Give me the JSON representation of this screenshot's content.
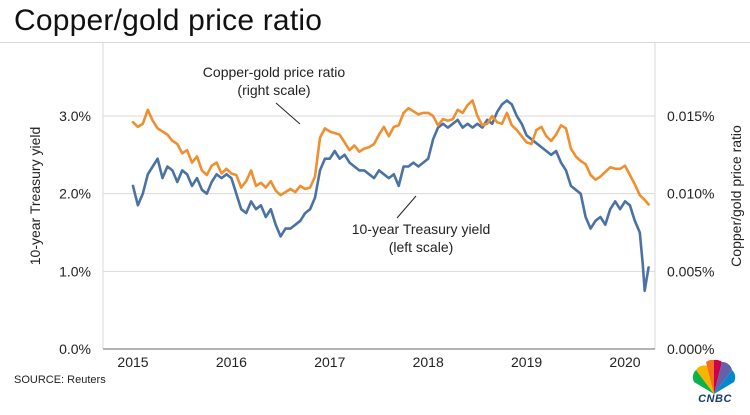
{
  "header": {
    "title": "Copper/gold price ratio"
  },
  "footer": {
    "source": "SOURCE: Reuters",
    "logo_text": "CNBC"
  },
  "colors": {
    "yield": "#4a72a4",
    "ratio": "#ef8f2f",
    "grid": "#d9d9d9"
  },
  "chart_data": {
    "type": "line",
    "title": "Copper/gold price ratio",
    "xlabel": "",
    "ylabel_left": "10-year Treasury yield",
    "ylabel_right": "Copper/gold price ratio",
    "x_ticks": [
      "2015",
      "2016",
      "2017",
      "2018",
      "2019",
      "2020"
    ],
    "y_left_ticks": [
      "0.0%",
      "1.0%",
      "2.0%",
      "3.0%"
    ],
    "y_right_ticks": [
      "0.000%",
      "0.005%",
      "0.010%",
      "0.015%"
    ],
    "xlim": [
      2015,
      2020.4
    ],
    "ylim_left": [
      0,
      3.3
    ],
    "ylim_right": [
      0,
      0.0165
    ],
    "grid": true,
    "annotations": {
      "ratio": [
        "Copper-gold price ratio",
        "(right scale)"
      ],
      "yield": [
        "10-year Treasury yield",
        "(left scale)"
      ]
    },
    "series": [
      {
        "name": "10-year Treasury yield",
        "axis": "left",
        "x": [
          2015.0,
          2015.05,
          2015.1,
          2015.15,
          2015.2,
          2015.25,
          2015.3,
          2015.35,
          2015.4,
          2015.45,
          2015.5,
          2015.55,
          2015.6,
          2015.65,
          2015.7,
          2015.75,
          2015.8,
          2015.85,
          2015.9,
          2015.95,
          2016.0,
          2016.05,
          2016.1,
          2016.15,
          2016.2,
          2016.25,
          2016.3,
          2016.35,
          2016.4,
          2016.45,
          2016.5,
          2016.55,
          2016.6,
          2016.65,
          2016.7,
          2016.75,
          2016.8,
          2016.85,
          2016.9,
          2016.95,
          2017.0,
          2017.05,
          2017.1,
          2017.15,
          2017.2,
          2017.25,
          2017.3,
          2017.35,
          2017.4,
          2017.45,
          2017.5,
          2017.55,
          2017.6,
          2017.65,
          2017.7,
          2017.75,
          2017.8,
          2017.85,
          2017.9,
          2017.95,
          2018.0,
          2018.05,
          2018.1,
          2018.15,
          2018.2,
          2018.25,
          2018.3,
          2018.35,
          2018.4,
          2018.45,
          2018.5,
          2018.55,
          2018.6,
          2018.65,
          2018.7,
          2018.75,
          2018.8,
          2018.85,
          2018.9,
          2018.95,
          2019.0,
          2019.05,
          2019.1,
          2019.15,
          2019.2,
          2019.25,
          2019.3,
          2019.35,
          2019.4,
          2019.45,
          2019.5,
          2019.55,
          2019.6,
          2019.65,
          2019.7,
          2019.75,
          2019.8,
          2019.85,
          2019.9,
          2019.95,
          2020.0,
          2020.05,
          2020.1,
          2020.15,
          2020.18,
          2020.2,
          2020.22,
          2020.24
        ],
        "values": [
          2.1,
          1.85,
          2.0,
          2.25,
          2.35,
          2.45,
          2.2,
          2.35,
          2.3,
          2.15,
          2.3,
          2.25,
          2.1,
          2.2,
          2.05,
          2.0,
          2.15,
          2.25,
          2.2,
          2.25,
          2.2,
          2.0,
          1.8,
          1.75,
          1.9,
          1.8,
          1.85,
          1.7,
          1.8,
          1.6,
          1.45,
          1.55,
          1.55,
          1.6,
          1.65,
          1.75,
          1.8,
          1.95,
          2.3,
          2.45,
          2.45,
          2.55,
          2.45,
          2.5,
          2.4,
          2.35,
          2.3,
          2.3,
          2.25,
          2.2,
          2.3,
          2.25,
          2.2,
          2.25,
          2.1,
          2.35,
          2.35,
          2.4,
          2.35,
          2.4,
          2.45,
          2.7,
          2.85,
          2.9,
          2.85,
          2.9,
          2.95,
          2.85,
          2.9,
          2.85,
          2.9,
          2.85,
          2.95,
          2.9,
          3.05,
          3.15,
          3.2,
          3.15,
          3.0,
          2.9,
          2.75,
          2.7,
          2.65,
          2.6,
          2.55,
          2.5,
          2.55,
          2.4,
          2.3,
          2.1,
          2.05,
          2.0,
          1.7,
          1.55,
          1.65,
          1.7,
          1.6,
          1.8,
          1.9,
          1.8,
          1.9,
          1.85,
          1.65,
          1.5,
          1.1,
          0.75,
          0.9,
          1.05
        ]
      },
      {
        "name": "Copper-gold price ratio",
        "axis": "right",
        "x": [
          2015.0,
          2015.05,
          2015.1,
          2015.15,
          2015.2,
          2015.25,
          2015.3,
          2015.35,
          2015.4,
          2015.45,
          2015.5,
          2015.55,
          2015.6,
          2015.65,
          2015.7,
          2015.75,
          2015.8,
          2015.85,
          2015.9,
          2015.95,
          2016.0,
          2016.05,
          2016.1,
          2016.15,
          2016.2,
          2016.25,
          2016.3,
          2016.35,
          2016.4,
          2016.45,
          2016.5,
          2016.55,
          2016.6,
          2016.65,
          2016.7,
          2016.75,
          2016.8,
          2016.85,
          2016.9,
          2016.95,
          2017.0,
          2017.05,
          2017.1,
          2017.15,
          2017.2,
          2017.25,
          2017.3,
          2017.35,
          2017.4,
          2017.45,
          2017.5,
          2017.55,
          2017.6,
          2017.65,
          2017.7,
          2017.75,
          2017.8,
          2017.85,
          2017.9,
          2017.95,
          2018.0,
          2018.05,
          2018.1,
          2018.15,
          2018.2,
          2018.25,
          2018.3,
          2018.35,
          2018.4,
          2018.45,
          2018.5,
          2018.55,
          2018.6,
          2018.65,
          2018.7,
          2018.75,
          2018.8,
          2018.85,
          2018.9,
          2018.95,
          2019.0,
          2019.05,
          2019.1,
          2019.15,
          2019.2,
          2019.25,
          2019.3,
          2019.35,
          2019.4,
          2019.45,
          2019.5,
          2019.55,
          2019.6,
          2019.65,
          2019.7,
          2019.75,
          2019.8,
          2019.85,
          2019.9,
          2019.95,
          2020.0,
          2020.05,
          2020.1,
          2020.15,
          2020.2,
          2020.24
        ],
        "values": [
          0.0146,
          0.0143,
          0.0145,
          0.0154,
          0.0147,
          0.0142,
          0.014,
          0.0138,
          0.0134,
          0.0132,
          0.0126,
          0.0128,
          0.012,
          0.0124,
          0.0115,
          0.0112,
          0.0118,
          0.012,
          0.0113,
          0.0116,
          0.0113,
          0.0112,
          0.0104,
          0.0108,
          0.0115,
          0.0105,
          0.0107,
          0.0104,
          0.0108,
          0.0102,
          0.0099,
          0.0101,
          0.0103,
          0.0101,
          0.0105,
          0.0103,
          0.0104,
          0.0111,
          0.0136,
          0.0142,
          0.014,
          0.0139,
          0.0138,
          0.0133,
          0.0128,
          0.0131,
          0.0127,
          0.0129,
          0.013,
          0.0132,
          0.0138,
          0.0143,
          0.0137,
          0.0143,
          0.0144,
          0.0152,
          0.0155,
          0.0153,
          0.0151,
          0.0152,
          0.0152,
          0.015,
          0.0144,
          0.0148,
          0.0147,
          0.0148,
          0.0154,
          0.0152,
          0.0157,
          0.016,
          0.015,
          0.0144,
          0.0145,
          0.015,
          0.0146,
          0.0145,
          0.0152,
          0.0144,
          0.0141,
          0.0137,
          0.0133,
          0.0132,
          0.0141,
          0.0143,
          0.0137,
          0.0134,
          0.0138,
          0.0144,
          0.0142,
          0.0129,
          0.0124,
          0.0121,
          0.0119,
          0.0112,
          0.0109,
          0.0111,
          0.0114,
          0.0117,
          0.0116,
          0.0116,
          0.0118,
          0.0112,
          0.0106,
          0.0099,
          0.0096,
          0.0093
        ]
      }
    ]
  }
}
